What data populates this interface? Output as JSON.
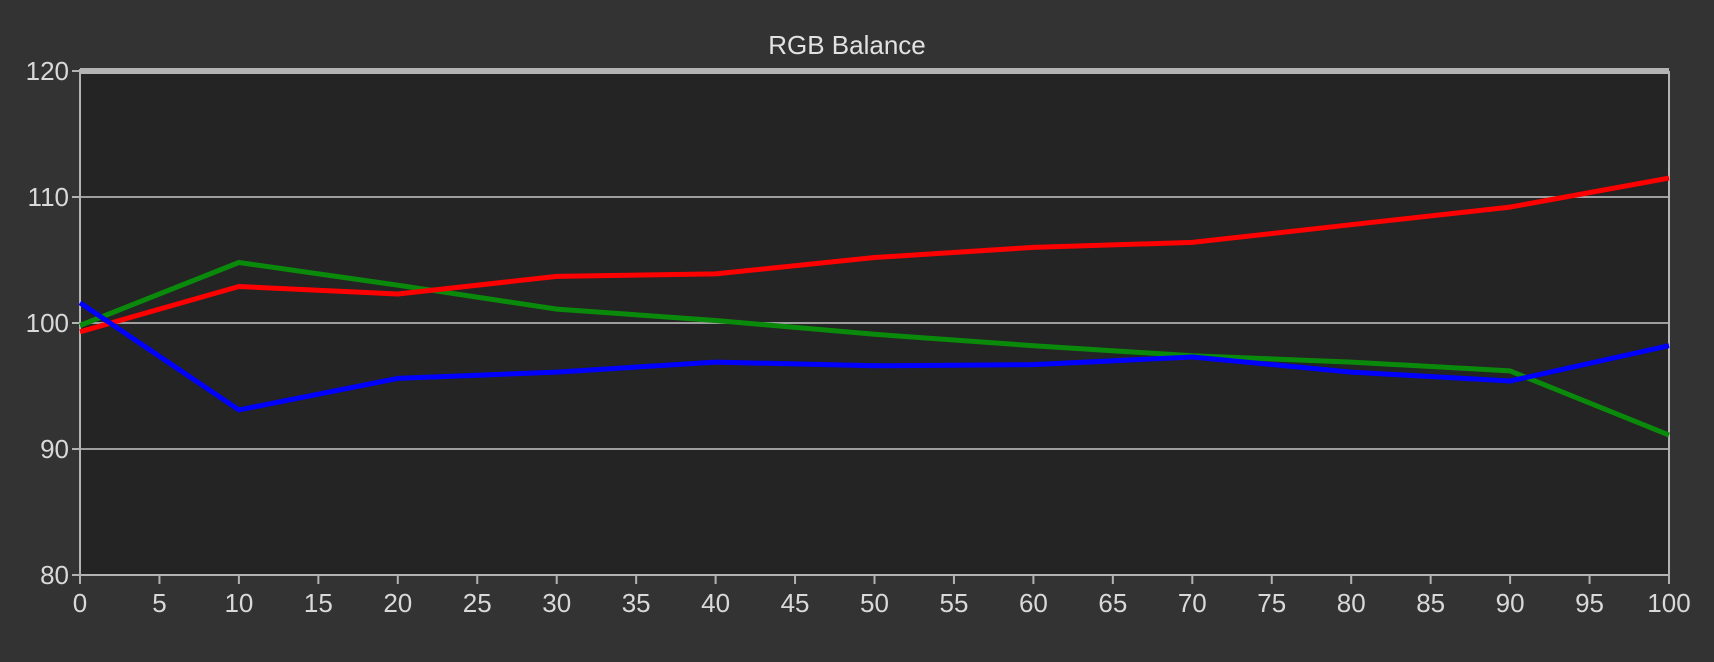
{
  "chart_data": {
    "type": "line",
    "title": "RGB Balance",
    "xlabel": "",
    "ylabel": "",
    "xlim": [
      0,
      100
    ],
    "ylim": [
      80,
      120
    ],
    "x_ticks": [
      0,
      5,
      10,
      15,
      20,
      25,
      30,
      35,
      40,
      45,
      50,
      55,
      60,
      65,
      70,
      75,
      80,
      85,
      90,
      95,
      100
    ],
    "y_ticks": [
      80,
      90,
      100,
      110,
      120
    ],
    "grid": true,
    "legend": "none",
    "x": [
      0,
      10,
      20,
      30,
      40,
      50,
      60,
      70,
      80,
      90,
      100
    ],
    "series": [
      {
        "color": "#ff0000",
        "values": [
          99.3,
          102.9,
          102.3,
          103.7,
          103.9,
          105.2,
          106.0,
          106.4,
          107.8,
          109.2,
          111.5
        ]
      },
      {
        "color": "#0a8a0a",
        "values": [
          99.8,
          104.8,
          103.0,
          101.1,
          100.2,
          99.1,
          98.2,
          97.4,
          96.9,
          96.2,
          91.1
        ]
      },
      {
        "color": "#0000ff",
        "values": [
          101.6,
          93.1,
          95.6,
          96.1,
          96.9,
          96.6,
          96.7,
          97.3,
          96.1,
          95.4,
          98.2
        ]
      }
    ]
  },
  "colors": {
    "background": "#333333",
    "plot_area": "#242424",
    "grid": "#9e9e9e",
    "axis": "#b3b3b3",
    "tick_text": "#d9d9d9"
  }
}
